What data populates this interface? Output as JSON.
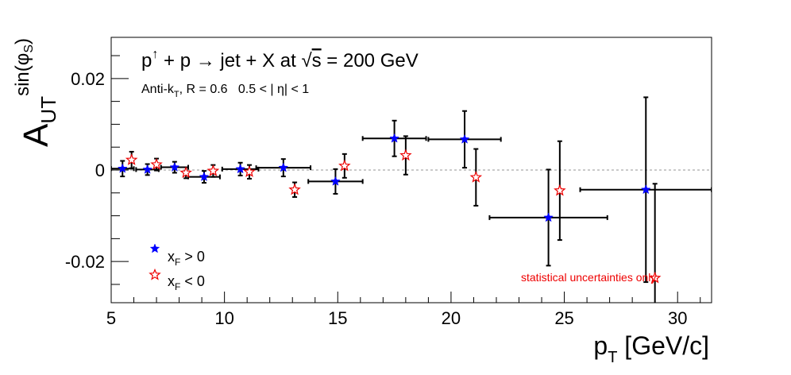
{
  "chart_data": {
    "type": "scatter",
    "title": "p↑ + p → jet + X at √s = 200 GeV",
    "title_parts": {
      "p": "p",
      "arrow_up": "↑",
      "reaction": " + p → jet + X at ",
      "sqrt": "√",
      "s": "s",
      "energy": " = 200 GeV"
    },
    "subtitle_parts": {
      "anti": "Anti-k",
      "T": "T",
      "rest": ", R = 0.6   0.5 < | η| < 1"
    },
    "xlabel_parts": {
      "p": "p",
      "T": "T",
      "unit": " [GeV/c]"
    },
    "ylabel_parts": {
      "A": "A",
      "UT": "UT",
      "sin": "sin(φ",
      "S": "S",
      "close": ")"
    },
    "xlim": [
      5,
      31.5
    ],
    "ylim": [
      -0.029,
      0.029
    ],
    "x_ticks": [
      5,
      10,
      15,
      20,
      25,
      30
    ],
    "x_tick_labels": [
      "5",
      "10",
      "15",
      "20",
      "25",
      "30"
    ],
    "y_ticks": [
      -0.02,
      0,
      0.02
    ],
    "y_tick_labels": [
      "-0.02",
      "0",
      "0.02"
    ],
    "zero_line": true,
    "grid": false,
    "legend": {
      "placement": "bottom-left",
      "entries": [
        {
          "x": "x",
          "F": "F",
          "rest": " > 0"
        },
        {
          "x": "x",
          "F": "F",
          "rest": " < 0"
        }
      ]
    },
    "annotation": "statistical uncertainties only",
    "series": [
      {
        "name": "x_F > 0",
        "marker": "filled-star",
        "color": "#0000ff",
        "points": [
          {
            "x": 5.5,
            "y": 0.0003,
            "xerr": 0.5,
            "yerr": 0.0017
          },
          {
            "x": 6.6,
            "y": 0.0001,
            "xerr": 0.5,
            "yerr": 0.0012
          },
          {
            "x": 7.8,
            "y": 0.0006,
            "xerr": 0.6,
            "yerr": 0.0012
          },
          {
            "x": 9.1,
            "y": -0.0015,
            "xerr": 0.7,
            "yerr": 0.0013
          },
          {
            "x": 10.7,
            "y": 0.0002,
            "xerr": 0.8,
            "yerr": 0.0014
          },
          {
            "x": 12.6,
            "y": 0.0005,
            "xerr": 1.2,
            "yerr": 0.0019
          },
          {
            "x": 14.9,
            "y": -0.0025,
            "xerr": 1.2,
            "yerr": 0.0027
          },
          {
            "x": 17.5,
            "y": 0.0069,
            "xerr": 1.4,
            "yerr": 0.0039
          },
          {
            "x": 20.6,
            "y": 0.0067,
            "xerr": 1.6,
            "yerr": 0.0062
          },
          {
            "x": 24.3,
            "y": -0.0104,
            "xerr": 2.6,
            "yerr": 0.0105
          },
          {
            "x": 28.6,
            "y": -0.0043,
            "xerr": 2.9,
            "yerr": 0.0202
          }
        ]
      },
      {
        "name": "x_F < 0",
        "marker": "open-star",
        "color": "#ee0000",
        "points": [
          {
            "x": 5.9,
            "y": 0.0022,
            "yerr": 0.0018
          },
          {
            "x": 7.0,
            "y": 0.0012,
            "yerr": 0.0013
          },
          {
            "x": 8.3,
            "y": -0.0006,
            "yerr": 0.0012
          },
          {
            "x": 9.5,
            "y": -0.0002,
            "yerr": 0.0013
          },
          {
            "x": 11.1,
            "y": -0.0004,
            "yerr": 0.0015
          },
          {
            "x": 13.1,
            "y": -0.0043,
            "yerr": 0.0016
          },
          {
            "x": 15.3,
            "y": 0.0009,
            "yerr": 0.0026
          },
          {
            "x": 18.0,
            "y": 0.0032,
            "yerr": 0.0042
          },
          {
            "x": 21.1,
            "y": -0.0016,
            "yerr": 0.0062
          },
          {
            "x": 24.8,
            "y": -0.0045,
            "yerr": 0.0108
          },
          {
            "x": 29.0,
            "y": -0.0236,
            "yerr": 0.0206
          }
        ]
      }
    ]
  }
}
